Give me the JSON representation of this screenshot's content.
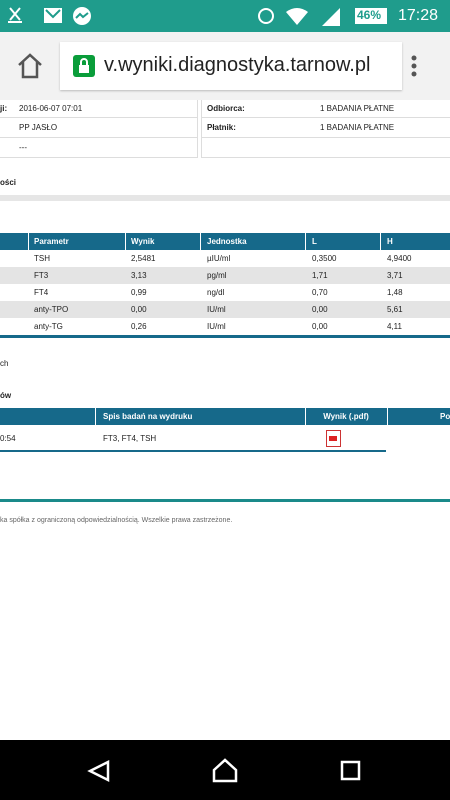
{
  "status_bar": {
    "battery": "46%",
    "time": "17:28"
  },
  "browser": {
    "url": "v.wyniki.diagnostyka.tarnow.pl"
  },
  "info_table": {
    "rows": [
      {
        "label": "ji:",
        "value": "2016-06-07 07:01",
        "label2": "Odbiorca:",
        "value2": "1 BADANIA PŁATNE"
      },
      {
        "value": "PP JASŁO",
        "label2": "Płatnik:",
        "value2": "1 BADANIA PŁATNE"
      },
      {
        "value": "---"
      }
    ]
  },
  "section1": {
    "title": "ości"
  },
  "results_table": {
    "headers": [
      "Parametr",
      "Wynik",
      "Jednostka",
      "L",
      "H"
    ],
    "rows": [
      [
        "TSH",
        "2,5481",
        "µIU/ml",
        "0,3500",
        "4,9400"
      ],
      [
        "FT3",
        "3,13",
        "pg/ml",
        "1,71",
        "3,71"
      ],
      [
        "FT4",
        "0,99",
        "ng/dl",
        "0,70",
        "1,48"
      ],
      [
        "anty-TPO",
        "0,00",
        "IU/ml",
        "0,00",
        "5,61"
      ],
      [
        "anty-TG",
        "0,26",
        "IU/ml",
        "0,00",
        "4,11"
      ]
    ]
  },
  "note": "ch",
  "section2": {
    "title": "ów"
  },
  "print_table": {
    "headers": [
      "Spis badań na wydruku",
      "Wynik (.pdf)",
      "Po"
    ],
    "rows": [
      {
        "time": "0:54",
        "tests": "FT3, FT4, TSH"
      }
    ]
  },
  "footer": "ka spółka z ograniczoną odpowiedzialnością. Wszelkie prawa zastrzeżone."
}
